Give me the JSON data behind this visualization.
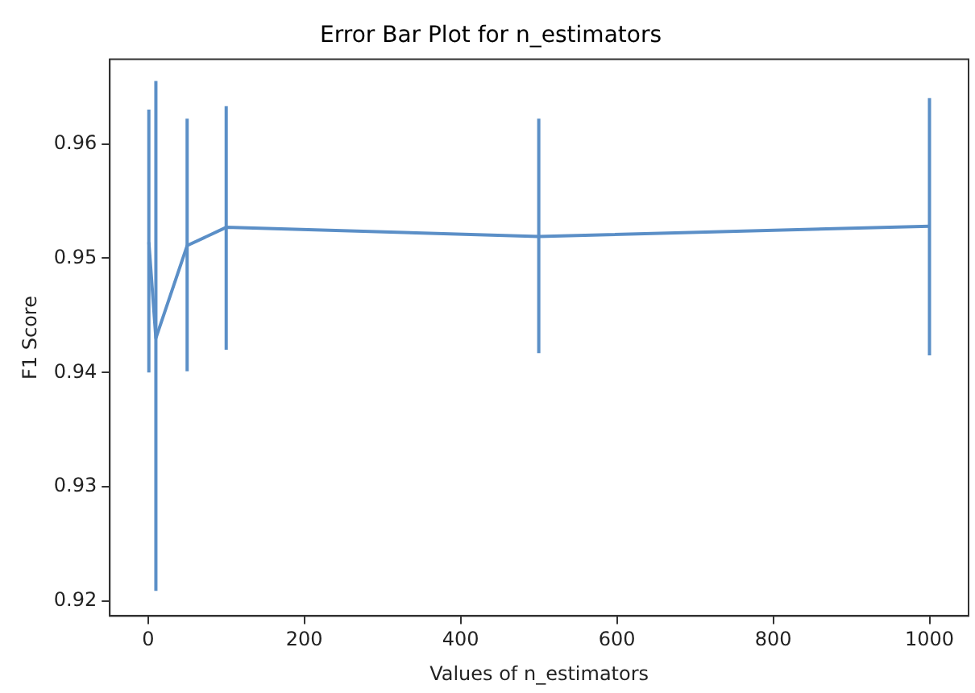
{
  "chart_data": {
    "type": "line",
    "title": "Error Bar Plot for n_estimators",
    "xlabel": "Values of n_estimators",
    "ylabel": "F1 Score",
    "x": [
      1,
      10,
      50,
      100,
      500,
      1000
    ],
    "series": [
      {
        "color": "#5b8fc7",
        "values": [
          0.9514,
          0.943,
          0.9511,
          0.9527,
          0.9519,
          0.9528
        ],
        "errors": [
          [
            0.94,
            0.963
          ],
          [
            0.9209,
            0.9655
          ],
          [
            0.9401,
            0.9622
          ],
          [
            0.942,
            0.9633
          ],
          [
            0.9417,
            0.9622
          ],
          [
            0.9415,
            0.964
          ]
        ]
      }
    ],
    "xlim": [
      -49,
      1050
    ],
    "xticks": [
      0,
      200,
      400,
      600,
      800,
      1000
    ],
    "ylim": [
      0.9187,
      0.9674
    ],
    "yticks": [
      0.92,
      0.93,
      0.94,
      0.95,
      0.96
    ],
    "grid": false,
    "legend": false,
    "marker": "none",
    "line_style": "solid"
  }
}
